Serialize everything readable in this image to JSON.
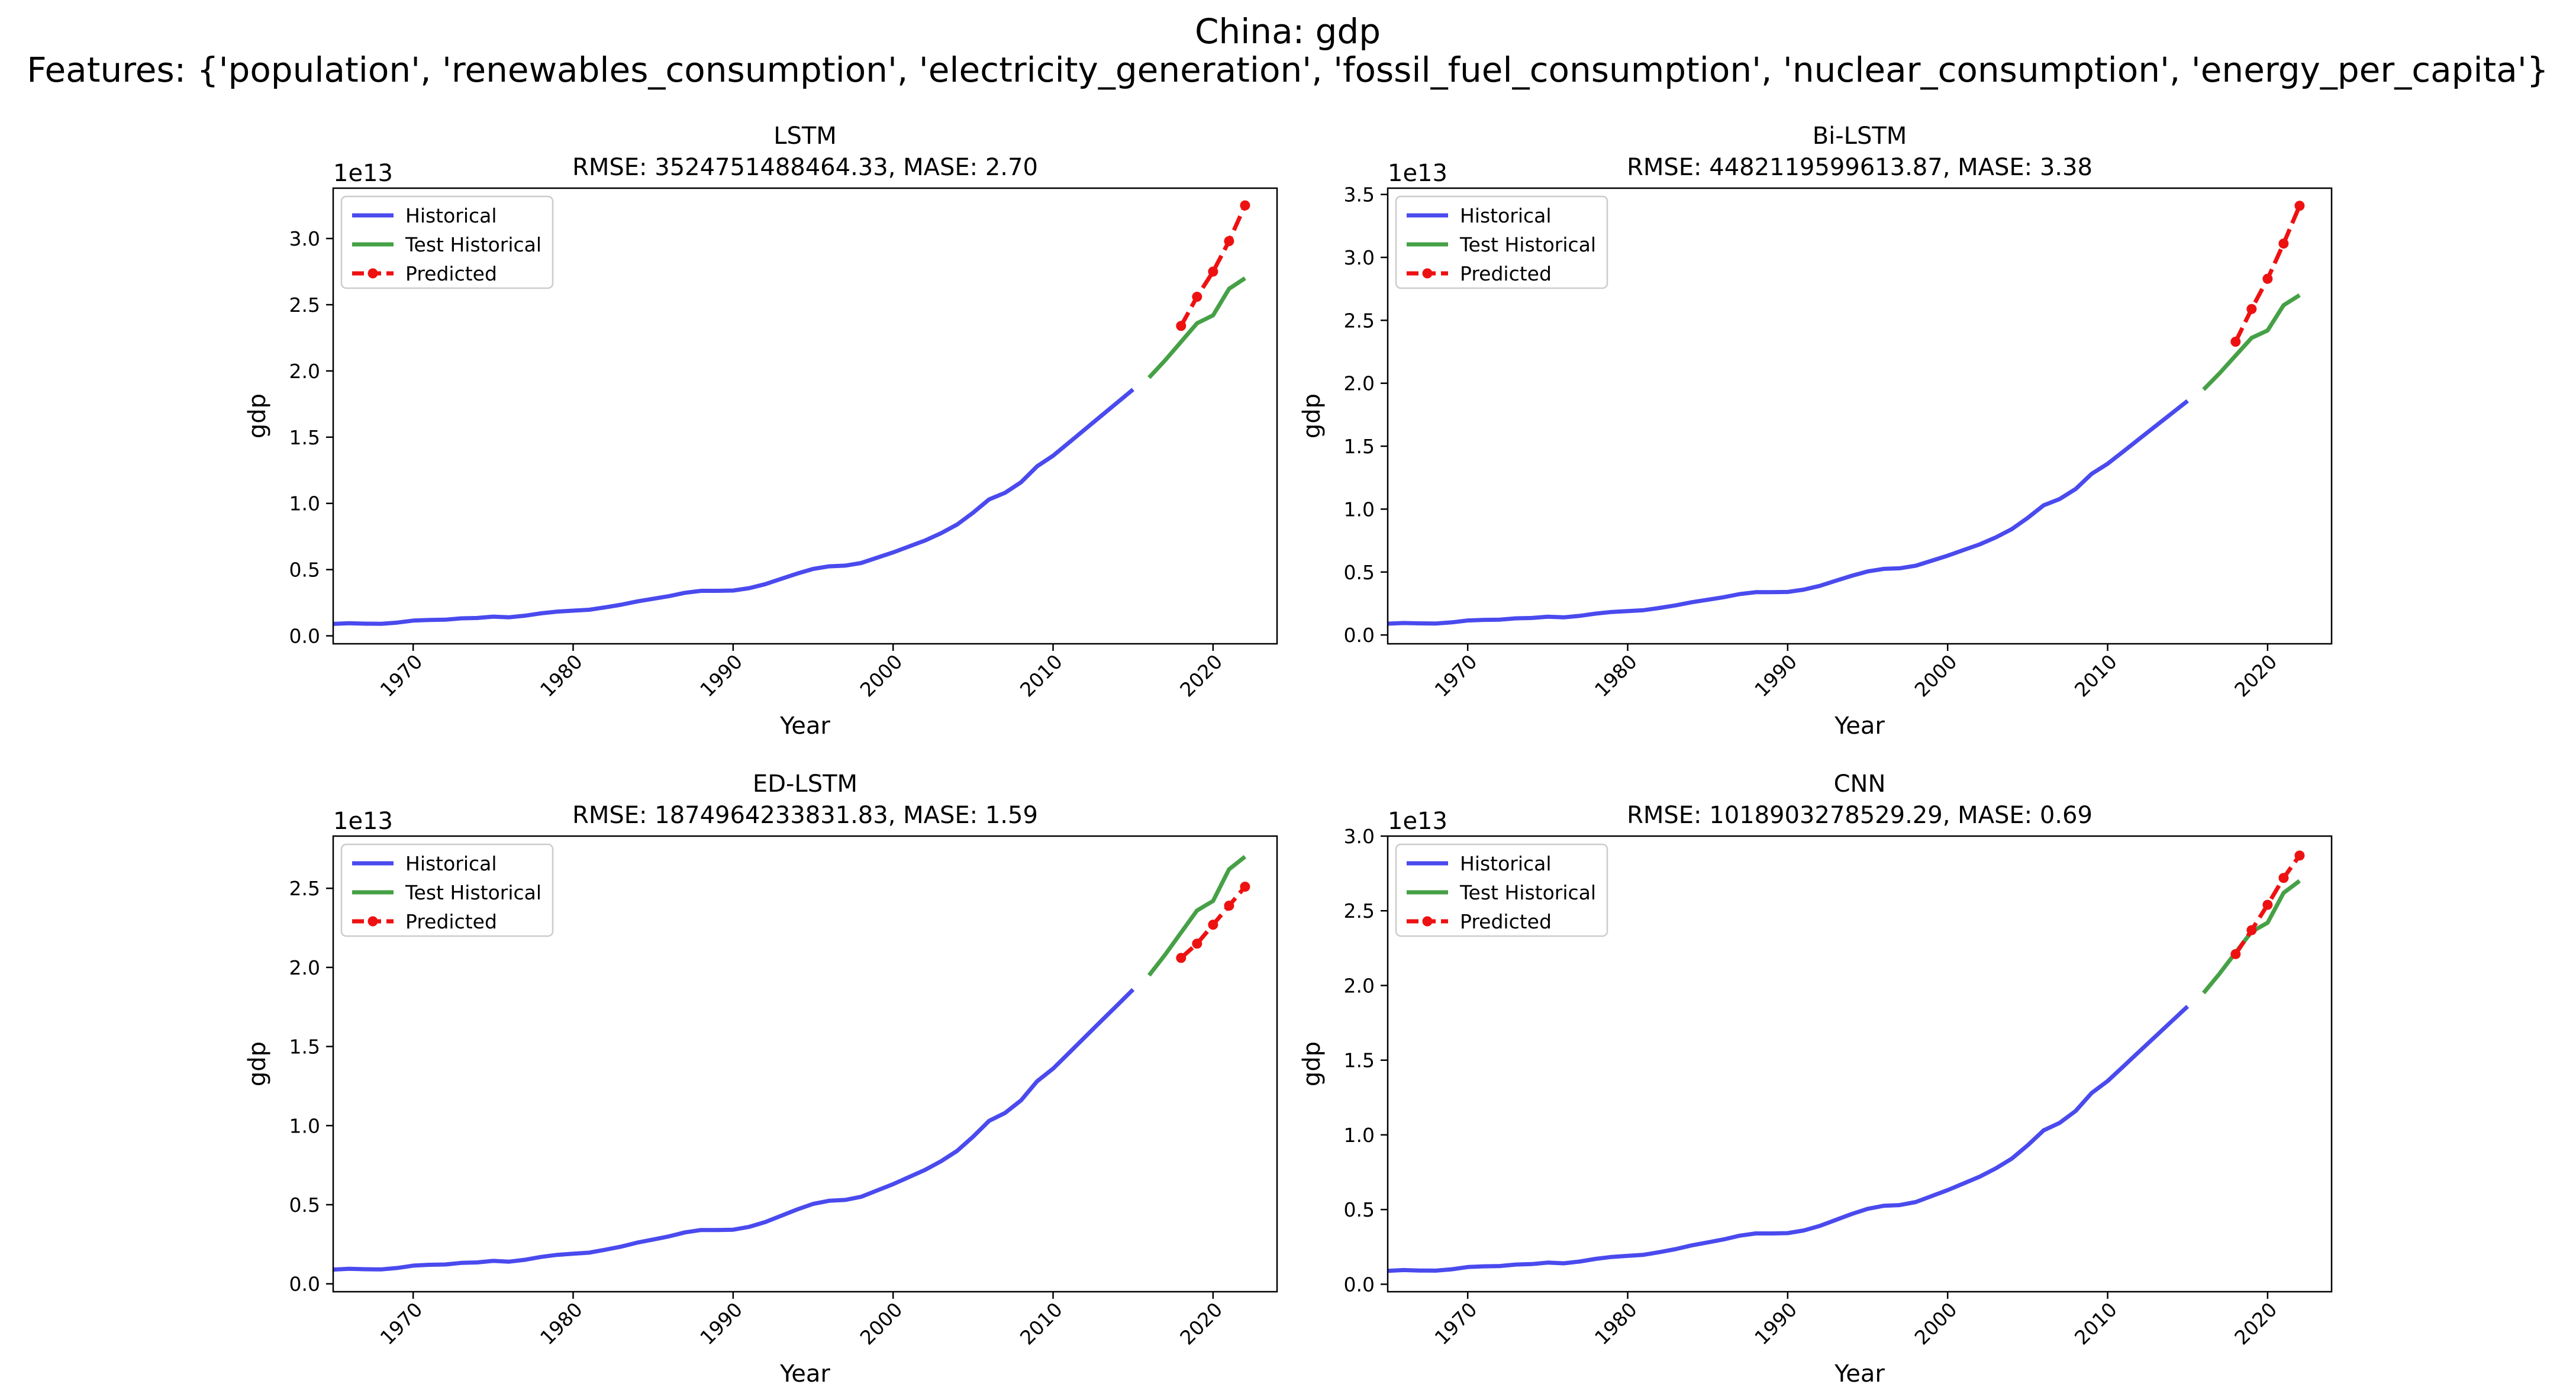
{
  "figure": {
    "title_line1": "China: gdp",
    "title_line2": "Features: {'population', 'renewables_consumption', 'electricity_generation', 'fossil_fuel_consumption', 'nuclear_consumption', 'energy_per_capita'}"
  },
  "colors": {
    "historical": "#4a4aee",
    "test_historical": "#46a046",
    "predicted": "#ee1111"
  },
  "chart_data": [
    {
      "type": "line",
      "title": "LSTM",
      "subtitle": "RMSE: 3524751488464.33, MASE: 2.70",
      "xlabel": "Year",
      "ylabel": "gdp",
      "y_offset_label": "1e13",
      "xlim": [
        1965,
        2024
      ],
      "ylim": [
        -0.06,
        3.38
      ],
      "xticks": [
        1970,
        1980,
        1990,
        2000,
        2010,
        2020
      ],
      "yticks": [
        0.0,
        0.5,
        1.0,
        1.5,
        2.0,
        2.5,
        3.0
      ],
      "ytick_labels": [
        "0.0",
        "0.5",
        "1.0",
        "1.5",
        "2.0",
        "2.5",
        "3.0"
      ],
      "grid": false,
      "legend_position": "upper-left",
      "series": [
        {
          "name": "Historical",
          "style": "solid",
          "color_key": "historical",
          "x": [
            1965,
            1966,
            1967,
            1968,
            1969,
            1970,
            1971,
            1972,
            1973,
            1974,
            1975,
            1976,
            1977,
            1978,
            1979,
            1980,
            1981,
            1982,
            1983,
            1984,
            1985,
            1986,
            1987,
            1988,
            1989,
            1990,
            1991,
            1992,
            1993,
            1994,
            1995,
            1996,
            1997,
            1998,
            1999,
            2000,
            2001,
            2002,
            2003,
            2004,
            2005,
            2006,
            2007,
            2008,
            2009,
            2010,
            2011,
            2012,
            2013,
            2014,
            2015
          ],
          "y": [
            0.09,
            0.095,
            0.092,
            0.091,
            0.1,
            0.115,
            0.12,
            0.122,
            0.132,
            0.135,
            0.145,
            0.14,
            0.152,
            0.17,
            0.183,
            0.19,
            0.197,
            0.215,
            0.235,
            0.26,
            0.28,
            0.3,
            0.325,
            0.34,
            0.34,
            0.342,
            0.36,
            0.39,
            0.43,
            0.47,
            0.505,
            0.525,
            0.53,
            0.55,
            0.59,
            0.63,
            0.675,
            0.72,
            0.775,
            0.84,
            0.93,
            1.03,
            1.08,
            1.16,
            1.28,
            1.36,
            1.46,
            1.56,
            1.66,
            1.76,
            1.86
          ]
        },
        {
          "name": "Test Historical",
          "style": "solid",
          "color_key": "test_historical",
          "x": [
            2016,
            2017,
            2018,
            2019,
            2020,
            2021,
            2022
          ],
          "y": [
            1.95,
            2.08,
            2.22,
            2.36,
            2.42,
            2.62,
            2.7
          ]
        },
        {
          "name": "Predicted",
          "style": "dashed",
          "markers": true,
          "color_key": "predicted",
          "x": [
            2018,
            2019,
            2020,
            2021,
            2022
          ],
          "y": [
            2.34,
            2.56,
            2.75,
            2.98,
            3.25
          ]
        }
      ]
    },
    {
      "type": "line",
      "title": "Bi-LSTM",
      "subtitle": "RMSE: 4482119599613.87, MASE: 3.38",
      "xlabel": "Year",
      "ylabel": "gdp",
      "y_offset_label": "1e13",
      "xlim": [
        1965,
        2024
      ],
      "ylim": [
        -0.07,
        3.55
      ],
      "xticks": [
        1970,
        1980,
        1990,
        2000,
        2010,
        2020
      ],
      "yticks": [
        0.0,
        0.5,
        1.0,
        1.5,
        2.0,
        2.5,
        3.0,
        3.5
      ],
      "ytick_labels": [
        "0.0",
        "0.5",
        "1.0",
        "1.5",
        "2.0",
        "2.5",
        "3.0",
        "3.5"
      ],
      "grid": false,
      "legend_position": "upper-left",
      "series": [
        {
          "name": "Historical",
          "style": "solid",
          "color_key": "historical",
          "x": [
            1965,
            1966,
            1967,
            1968,
            1969,
            1970,
            1971,
            1972,
            1973,
            1974,
            1975,
            1976,
            1977,
            1978,
            1979,
            1980,
            1981,
            1982,
            1983,
            1984,
            1985,
            1986,
            1987,
            1988,
            1989,
            1990,
            1991,
            1992,
            1993,
            1994,
            1995,
            1996,
            1997,
            1998,
            1999,
            2000,
            2001,
            2002,
            2003,
            2004,
            2005,
            2006,
            2007,
            2008,
            2009,
            2010,
            2011,
            2012,
            2013,
            2014,
            2015
          ],
          "y": [
            0.09,
            0.095,
            0.092,
            0.091,
            0.1,
            0.115,
            0.12,
            0.122,
            0.132,
            0.135,
            0.145,
            0.14,
            0.152,
            0.17,
            0.183,
            0.19,
            0.197,
            0.215,
            0.235,
            0.26,
            0.28,
            0.3,
            0.325,
            0.34,
            0.34,
            0.342,
            0.36,
            0.39,
            0.43,
            0.47,
            0.505,
            0.525,
            0.53,
            0.55,
            0.59,
            0.63,
            0.675,
            0.72,
            0.775,
            0.84,
            0.93,
            1.03,
            1.08,
            1.16,
            1.28,
            1.36,
            1.46,
            1.56,
            1.66,
            1.76,
            1.86
          ]
        },
        {
          "name": "Test Historical",
          "style": "solid",
          "color_key": "test_historical",
          "x": [
            2016,
            2017,
            2018,
            2019,
            2020,
            2021,
            2022
          ],
          "y": [
            1.95,
            2.08,
            2.22,
            2.36,
            2.42,
            2.62,
            2.7
          ]
        },
        {
          "name": "Predicted",
          "style": "dashed",
          "markers": true,
          "color_key": "predicted",
          "x": [
            2018,
            2019,
            2020,
            2021,
            2022
          ],
          "y": [
            2.33,
            2.59,
            2.83,
            3.11,
            3.41
          ]
        }
      ]
    },
    {
      "type": "line",
      "title": "ED-LSTM",
      "subtitle": "RMSE: 1874964233831.83, MASE: 1.59",
      "xlabel": "Year",
      "ylabel": "gdp",
      "y_offset_label": "1e13",
      "xlim": [
        1965,
        2024
      ],
      "ylim": [
        -0.05,
        2.83
      ],
      "xticks": [
        1970,
        1980,
        1990,
        2000,
        2010,
        2020
      ],
      "yticks": [
        0.0,
        0.5,
        1.0,
        1.5,
        2.0,
        2.5
      ],
      "ytick_labels": [
        "0.0",
        "0.5",
        "1.0",
        "1.5",
        "2.0",
        "2.5"
      ],
      "grid": false,
      "legend_position": "upper-left",
      "series": [
        {
          "name": "Historical",
          "style": "solid",
          "color_key": "historical",
          "x": [
            1965,
            1966,
            1967,
            1968,
            1969,
            1970,
            1971,
            1972,
            1973,
            1974,
            1975,
            1976,
            1977,
            1978,
            1979,
            1980,
            1981,
            1982,
            1983,
            1984,
            1985,
            1986,
            1987,
            1988,
            1989,
            1990,
            1991,
            1992,
            1993,
            1994,
            1995,
            1996,
            1997,
            1998,
            1999,
            2000,
            2001,
            2002,
            2003,
            2004,
            2005,
            2006,
            2007,
            2008,
            2009,
            2010,
            2011,
            2012,
            2013,
            2014,
            2015
          ],
          "y": [
            0.09,
            0.095,
            0.092,
            0.091,
            0.1,
            0.115,
            0.12,
            0.122,
            0.132,
            0.135,
            0.145,
            0.14,
            0.152,
            0.17,
            0.183,
            0.19,
            0.197,
            0.215,
            0.235,
            0.26,
            0.28,
            0.3,
            0.325,
            0.34,
            0.34,
            0.342,
            0.36,
            0.39,
            0.43,
            0.47,
            0.505,
            0.525,
            0.53,
            0.55,
            0.59,
            0.63,
            0.675,
            0.72,
            0.775,
            0.84,
            0.93,
            1.03,
            1.08,
            1.16,
            1.28,
            1.36,
            1.46,
            1.56,
            1.66,
            1.76,
            1.86
          ]
        },
        {
          "name": "Test Historical",
          "style": "solid",
          "color_key": "test_historical",
          "x": [
            2016,
            2017,
            2018,
            2019,
            2020,
            2021,
            2022
          ],
          "y": [
            1.95,
            2.08,
            2.22,
            2.36,
            2.42,
            2.62,
            2.7
          ]
        },
        {
          "name": "Predicted",
          "style": "dashed",
          "markers": true,
          "color_key": "predicted",
          "x": [
            2018,
            2019,
            2020,
            2021,
            2022
          ],
          "y": [
            2.06,
            2.15,
            2.27,
            2.39,
            2.51
          ]
        }
      ]
    },
    {
      "type": "line",
      "title": "CNN",
      "subtitle": "RMSE: 1018903278529.29, MASE: 0.69",
      "xlabel": "Year",
      "ylabel": "gdp",
      "y_offset_label": "1e13",
      "xlim": [
        1965,
        2024
      ],
      "ylim": [
        -0.05,
        3.0
      ],
      "xticks": [
        1970,
        1980,
        1990,
        2000,
        2010,
        2020
      ],
      "yticks": [
        0.0,
        0.5,
        1.0,
        1.5,
        2.0,
        2.5,
        3.0
      ],
      "ytick_labels": [
        "0.0",
        "0.5",
        "1.0",
        "1.5",
        "2.0",
        "2.5",
        "3.0"
      ],
      "grid": false,
      "legend_position": "upper-left",
      "series": [
        {
          "name": "Historical",
          "style": "solid",
          "color_key": "historical",
          "x": [
            1965,
            1966,
            1967,
            1968,
            1969,
            1970,
            1971,
            1972,
            1973,
            1974,
            1975,
            1976,
            1977,
            1978,
            1979,
            1980,
            1981,
            1982,
            1983,
            1984,
            1985,
            1986,
            1987,
            1988,
            1989,
            1990,
            1991,
            1992,
            1993,
            1994,
            1995,
            1996,
            1997,
            1998,
            1999,
            2000,
            2001,
            2002,
            2003,
            2004,
            2005,
            2006,
            2007,
            2008,
            2009,
            2010,
            2011,
            2012,
            2013,
            2014,
            2015
          ],
          "y": [
            0.09,
            0.095,
            0.092,
            0.091,
            0.1,
            0.115,
            0.12,
            0.122,
            0.132,
            0.135,
            0.145,
            0.14,
            0.152,
            0.17,
            0.183,
            0.19,
            0.197,
            0.215,
            0.235,
            0.26,
            0.28,
            0.3,
            0.325,
            0.34,
            0.34,
            0.342,
            0.36,
            0.39,
            0.43,
            0.47,
            0.505,
            0.525,
            0.53,
            0.55,
            0.59,
            0.63,
            0.675,
            0.72,
            0.775,
            0.84,
            0.93,
            1.03,
            1.08,
            1.16,
            1.28,
            1.36,
            1.46,
            1.56,
            1.66,
            1.76,
            1.86
          ]
        },
        {
          "name": "Test Historical",
          "style": "solid",
          "color_key": "test_historical",
          "x": [
            2016,
            2017,
            2018,
            2019,
            2020,
            2021,
            2022
          ],
          "y": [
            1.95,
            2.08,
            2.22,
            2.36,
            2.42,
            2.62,
            2.7
          ]
        },
        {
          "name": "Predicted",
          "style": "dashed",
          "markers": true,
          "color_key": "predicted",
          "x": [
            2018,
            2019,
            2020,
            2021,
            2022
          ],
          "y": [
            2.21,
            2.37,
            2.54,
            2.72,
            2.87
          ]
        }
      ]
    }
  ]
}
